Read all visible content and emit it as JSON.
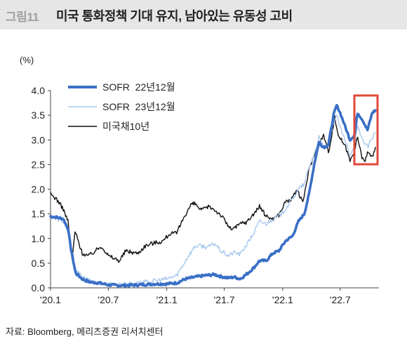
{
  "header": {
    "figure_label": "그림11",
    "title": "미국 통화정책 기대 유지, 남아있는 유동성 고비"
  },
  "unit_label": "(%)",
  "source": "자료: Bloomberg, 메리츠증권 리서치센터",
  "chart_data": {
    "type": "line",
    "title": "미국 통화정책 기대 유지, 남아있는 유동성 고비",
    "ylabel": "(%)",
    "ylim": [
      0,
      4.0
    ],
    "yticks": [
      "0.0",
      "0.5",
      "1.0",
      "1.5",
      "2.0",
      "2.5",
      "3.0",
      "3.5",
      "4.0"
    ],
    "xticks": [
      "'20.1",
      "'20.7",
      "'21.1",
      "'21.7",
      "'22.1",
      "'22.7"
    ],
    "xlim": [
      "2020-01-01",
      "2022-10-31"
    ],
    "grid": false,
    "legend_position": "top-left",
    "highlight_box": "recent period (2022-09 to 2022-10)",
    "series": [
      {
        "name": "SOFR  22년12월",
        "color": "#3a6fc6",
        "style": "thick",
        "points": [
          [
            "2020-01-01",
            1.45
          ],
          [
            "2020-01-20",
            1.43
          ],
          [
            "2020-02-10",
            1.4
          ],
          [
            "2020-02-25",
            1.2
          ],
          [
            "2020-03-05",
            0.8
          ],
          [
            "2020-03-20",
            0.3
          ],
          [
            "2020-04-10",
            0.18
          ],
          [
            "2020-05-01",
            0.12
          ],
          [
            "2020-06-01",
            0.1
          ],
          [
            "2020-07-01",
            0.06
          ],
          [
            "2020-08-01",
            0.05
          ],
          [
            "2020-09-01",
            0.05
          ],
          [
            "2020-10-01",
            0.06
          ],
          [
            "2020-11-01",
            0.07
          ],
          [
            "2020-12-01",
            0.08
          ],
          [
            "2021-01-01",
            0.08
          ],
          [
            "2021-02-01",
            0.1
          ],
          [
            "2021-03-01",
            0.18
          ],
          [
            "2021-04-01",
            0.22
          ],
          [
            "2021-05-01",
            0.25
          ],
          [
            "2021-06-01",
            0.27
          ],
          [
            "2021-06-20",
            0.23
          ],
          [
            "2021-07-15",
            0.2
          ],
          [
            "2021-08-01",
            0.22
          ],
          [
            "2021-08-20",
            0.18
          ],
          [
            "2021-09-10",
            0.28
          ],
          [
            "2021-10-01",
            0.4
          ],
          [
            "2021-10-20",
            0.55
          ],
          [
            "2021-11-10",
            0.55
          ],
          [
            "2021-12-01",
            0.7
          ],
          [
            "2021-12-20",
            0.75
          ],
          [
            "2022-01-10",
            0.95
          ],
          [
            "2022-02-01",
            1.05
          ],
          [
            "2022-02-20",
            1.35
          ],
          [
            "2022-03-10",
            1.5
          ],
          [
            "2022-03-25",
            1.9
          ],
          [
            "2022-04-10",
            2.5
          ],
          [
            "2022-04-25",
            2.95
          ],
          [
            "2022-05-10",
            2.85
          ],
          [
            "2022-05-25",
            2.9
          ],
          [
            "2022-06-10",
            3.5
          ],
          [
            "2022-06-20",
            3.7
          ],
          [
            "2022-07-01",
            3.55
          ],
          [
            "2022-07-15",
            3.3
          ],
          [
            "2022-08-01",
            3.0
          ],
          [
            "2022-08-15",
            3.1
          ],
          [
            "2022-08-25",
            3.55
          ],
          [
            "2022-09-10",
            3.4
          ],
          [
            "2022-09-25",
            3.2
          ],
          [
            "2022-10-10",
            3.55
          ],
          [
            "2022-10-20",
            3.6
          ]
        ]
      },
      {
        "name": "SOFR  23년12월",
        "color": "#a9c8ee",
        "style": "thin",
        "points": [
          [
            "2020-01-01",
            1.45
          ],
          [
            "2020-01-20",
            1.4
          ],
          [
            "2020-02-10",
            1.35
          ],
          [
            "2020-02-25",
            1.15
          ],
          [
            "2020-03-05",
            0.75
          ],
          [
            "2020-03-20",
            0.35
          ],
          [
            "2020-04-10",
            0.22
          ],
          [
            "2020-05-01",
            0.15
          ],
          [
            "2020-06-01",
            0.1
          ],
          [
            "2020-07-01",
            0.07
          ],
          [
            "2020-08-01",
            0.07
          ],
          [
            "2020-09-01",
            0.08
          ],
          [
            "2020-10-01",
            0.1
          ],
          [
            "2020-11-01",
            0.12
          ],
          [
            "2020-12-01",
            0.15
          ],
          [
            "2021-01-01",
            0.18
          ],
          [
            "2021-02-01",
            0.25
          ],
          [
            "2021-02-20",
            0.45
          ],
          [
            "2021-03-10",
            0.65
          ],
          [
            "2021-04-01",
            0.85
          ],
          [
            "2021-04-20",
            0.85
          ],
          [
            "2021-05-10",
            0.82
          ],
          [
            "2021-06-01",
            0.9
          ],
          [
            "2021-06-20",
            0.75
          ],
          [
            "2021-07-15",
            0.65
          ],
          [
            "2021-08-01",
            0.72
          ],
          [
            "2021-08-20",
            0.68
          ],
          [
            "2021-09-10",
            0.88
          ],
          [
            "2021-10-01",
            1.1
          ],
          [
            "2021-10-20",
            1.35
          ],
          [
            "2021-11-10",
            1.3
          ],
          [
            "2021-12-01",
            1.4
          ],
          [
            "2021-12-20",
            1.45
          ],
          [
            "2022-01-10",
            1.6
          ],
          [
            "2022-02-01",
            1.8
          ],
          [
            "2022-02-20",
            2.0
          ],
          [
            "2022-03-10",
            2.1
          ],
          [
            "2022-03-25",
            2.45
          ],
          [
            "2022-04-10",
            2.7
          ],
          [
            "2022-04-25",
            3.05
          ],
          [
            "2022-05-10",
            2.85
          ],
          [
            "2022-05-25",
            2.85
          ],
          [
            "2022-06-10",
            3.35
          ],
          [
            "2022-06-20",
            3.5
          ],
          [
            "2022-07-01",
            3.25
          ],
          [
            "2022-07-15",
            3.0
          ],
          [
            "2022-08-01",
            2.7
          ],
          [
            "2022-08-15",
            2.9
          ],
          [
            "2022-08-25",
            3.25
          ],
          [
            "2022-09-10",
            3.0
          ],
          [
            "2022-09-25",
            2.85
          ],
          [
            "2022-10-10",
            3.05
          ],
          [
            "2022-10-20",
            3.15
          ]
        ]
      },
      {
        "name": "미국채10년",
        "color": "#111111",
        "style": "thin",
        "points": [
          [
            "2020-01-01",
            1.9
          ],
          [
            "2020-01-20",
            1.8
          ],
          [
            "2020-02-10",
            1.6
          ],
          [
            "2020-02-25",
            1.35
          ],
          [
            "2020-03-09",
            0.55
          ],
          [
            "2020-03-18",
            1.15
          ],
          [
            "2020-04-10",
            0.7
          ],
          [
            "2020-05-01",
            0.65
          ],
          [
            "2020-06-10",
            0.85
          ],
          [
            "2020-07-01",
            0.65
          ],
          [
            "2020-08-05",
            0.55
          ],
          [
            "2020-08-25",
            0.75
          ],
          [
            "2020-10-01",
            0.7
          ],
          [
            "2020-10-25",
            0.85
          ],
          [
            "2020-11-15",
            0.9
          ],
          [
            "2020-12-20",
            0.95
          ],
          [
            "2021-01-10",
            1.1
          ],
          [
            "2021-02-01",
            1.1
          ],
          [
            "2021-02-25",
            1.45
          ],
          [
            "2021-03-20",
            1.7
          ],
          [
            "2021-04-01",
            1.7
          ],
          [
            "2021-04-20",
            1.57
          ],
          [
            "2021-05-15",
            1.65
          ],
          [
            "2021-06-01",
            1.58
          ],
          [
            "2021-06-20",
            1.48
          ],
          [
            "2021-07-20",
            1.2
          ],
          [
            "2021-08-05",
            1.22
          ],
          [
            "2021-08-25",
            1.32
          ],
          [
            "2021-09-10",
            1.33
          ],
          [
            "2021-10-01",
            1.5
          ],
          [
            "2021-10-20",
            1.65
          ],
          [
            "2021-11-10",
            1.45
          ],
          [
            "2021-12-01",
            1.4
          ],
          [
            "2021-12-20",
            1.48
          ],
          [
            "2022-01-10",
            1.75
          ],
          [
            "2022-02-01",
            1.8
          ],
          [
            "2022-02-15",
            2.0
          ],
          [
            "2022-03-05",
            1.72
          ],
          [
            "2022-03-25",
            2.4
          ],
          [
            "2022-04-10",
            2.7
          ],
          [
            "2022-04-25",
            2.9
          ],
          [
            "2022-05-10",
            3.1
          ],
          [
            "2022-05-25",
            2.75
          ],
          [
            "2022-06-14",
            3.45
          ],
          [
            "2022-06-25",
            3.1
          ],
          [
            "2022-07-15",
            2.9
          ],
          [
            "2022-08-01",
            2.6
          ],
          [
            "2022-08-15",
            2.8
          ],
          [
            "2022-08-25",
            3.05
          ],
          [
            "2022-09-05",
            2.7
          ],
          [
            "2022-09-15",
            2.55
          ],
          [
            "2022-09-25",
            2.75
          ],
          [
            "2022-10-10",
            2.65
          ],
          [
            "2022-10-20",
            2.85
          ]
        ]
      }
    ]
  }
}
